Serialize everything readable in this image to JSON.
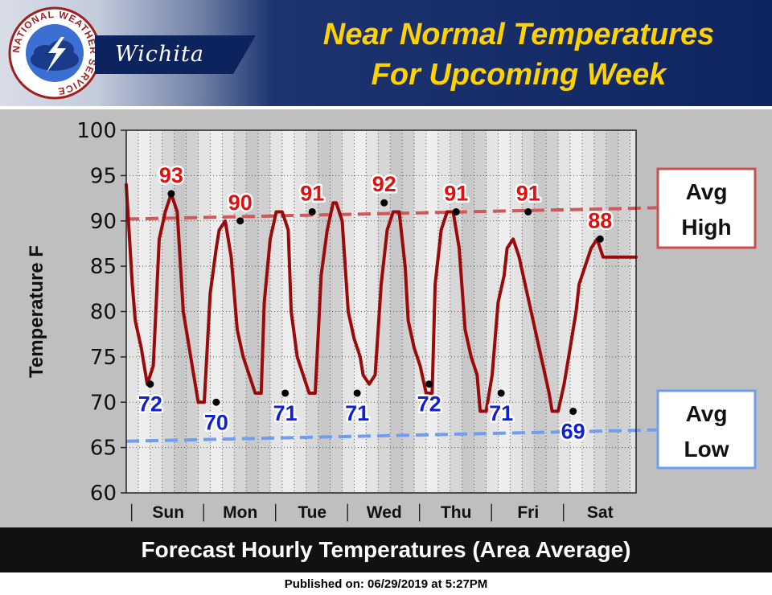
{
  "header": {
    "agency_ring_text": "NATIONAL WEATHER SERVICE",
    "office": "Wichita",
    "headline_line1": "Near Normal Temperatures",
    "headline_line2": "For Upcoming Week"
  },
  "footer": {
    "caption": "Forecast Hourly Temperatures (Area Average)",
    "published": "Published on: 06/29/2019 at 5:27PM"
  },
  "colors": {
    "headline": "#ffd200",
    "temperature_line": "#9b0a0a",
    "avg_high": "#d05858",
    "avg_low": "#6f9ef0",
    "high_label": "#e01010",
    "low_label": "#1020d0"
  },
  "chart_data": {
    "type": "line",
    "ylabel": "Temperature F",
    "xlabel": "",
    "ylim": [
      60,
      100
    ],
    "yticks": [
      60,
      65,
      70,
      75,
      80,
      85,
      90,
      95,
      100
    ],
    "x_unit": "hours",
    "xlim": [
      0,
      170
    ],
    "x_separators": [
      2,
      26,
      50,
      74,
      98,
      122,
      146
    ],
    "days": [
      {
        "label": "Sun",
        "center": 14
      },
      {
        "label": "Mon",
        "center": 38
      },
      {
        "label": "Tue",
        "center": 62
      },
      {
        "label": "Wed",
        "center": 86
      },
      {
        "label": "Thu",
        "center": 110
      },
      {
        "label": "Fri",
        "center": 134
      },
      {
        "label": "Sat",
        "center": 158
      }
    ],
    "grid": true,
    "series": [
      {
        "x": [
          0,
          2,
          3,
          5,
          7,
          9,
          11,
          13,
          15,
          17,
          19,
          21,
          22,
          24,
          26,
          28,
          30,
          31,
          33,
          35,
          37,
          39,
          41,
          43,
          45,
          46,
          48,
          50,
          52,
          54,
          55,
          57,
          59,
          61,
          63,
          65,
          67,
          69,
          70,
          72,
          74,
          76,
          78,
          79,
          81,
          83,
          85,
          87,
          89,
          91,
          93,
          94,
          96,
          98,
          100,
          102,
          103,
          105,
          107,
          109,
          111,
          113,
          115,
          117,
          118,
          120,
          122,
          124,
          126,
          127,
          129,
          131,
          133,
          135,
          137,
          139,
          141,
          142,
          144,
          146,
          148,
          150,
          151,
          153,
          155,
          157,
          159,
          161,
          163,
          164,
          166,
          168,
          170
        ],
        "y": [
          94,
          83,
          79,
          76,
          72,
          74,
          88,
          91,
          93,
          91,
          80,
          76,
          74,
          70,
          70,
          82,
          87,
          89,
          90,
          86,
          78,
          75,
          73,
          71,
          71,
          81,
          88,
          91,
          91,
          89,
          80,
          75,
          73,
          71,
          71,
          84,
          89,
          92,
          92,
          90,
          80,
          77,
          75,
          73,
          72,
          73,
          83,
          89,
          91,
          91,
          85,
          79,
          76,
          74,
          71,
          71,
          83,
          89,
          91,
          91,
          87,
          78,
          75,
          73,
          69,
          69,
          73,
          81,
          84,
          87,
          88,
          86,
          83,
          80,
          77,
          74,
          71,
          69,
          69,
          72,
          76,
          80,
          83,
          85,
          87,
          88,
          86,
          86,
          86,
          86,
          86,
          86,
          86
        ]
      }
    ],
    "highs": [
      {
        "x": 15,
        "value": 93
      },
      {
        "x": 38,
        "value": 90
      },
      {
        "x": 62,
        "value": 91
      },
      {
        "x": 86,
        "value": 92
      },
      {
        "x": 110,
        "value": 91
      },
      {
        "x": 134,
        "value": 91
      },
      {
        "x": 158,
        "value": 88
      }
    ],
    "lows": [
      {
        "x": 8,
        "value": 72
      },
      {
        "x": 30,
        "value": 70
      },
      {
        "x": 53,
        "value": 71
      },
      {
        "x": 77,
        "value": 71
      },
      {
        "x": 101,
        "value": 72
      },
      {
        "x": 125,
        "value": 71
      },
      {
        "x": 149,
        "value": 69
      }
    ],
    "reference_lines": [
      {
        "name": "Avg High",
        "line1": "Avg",
        "line2": "High",
        "y_start": 90.2,
        "y_end": 91.4
      },
      {
        "name": "Avg Low",
        "line1": "Avg",
        "line2": "Low",
        "y_start": 65.7,
        "y_end": 66.9
      }
    ]
  }
}
